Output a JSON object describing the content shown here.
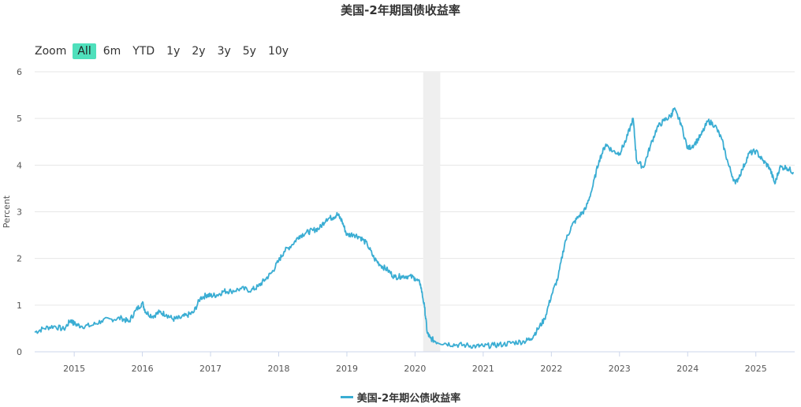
{
  "title": "美国-2年期国债收益率",
  "zoom": {
    "label": "Zoom",
    "buttons": [
      "All",
      "6m",
      "YTD",
      "1y",
      "2y",
      "3y",
      "5y",
      "10y"
    ],
    "active": "All"
  },
  "legend_label": "美国-2年期公债收益率",
  "colors": {
    "line": "#3aadd3",
    "band": "#efefef",
    "active_button": "#4fe0bc",
    "grid": "#e6e6e6"
  },
  "chart_data": {
    "type": "line",
    "title": "美国-2年期国债收益率",
    "xlabel": "",
    "ylabel": "Percent",
    "ylim": [
      0,
      6
    ],
    "yticks": [
      0,
      1,
      2,
      3,
      4,
      5,
      6
    ],
    "xticks": [
      "2015",
      "2016",
      "2017",
      "2018",
      "2019",
      "2020",
      "2021",
      "2022",
      "2023",
      "2024",
      "2025"
    ],
    "xlim": [
      2014.42,
      2025.57
    ],
    "grid": true,
    "legend": "bottom-center",
    "shaded_region": [
      2020.12,
      2020.37
    ],
    "series": [
      {
        "name": "美国-2年期公债收益率",
        "points": [
          [
            2014.42,
            0.42
          ],
          [
            2014.55,
            0.5
          ],
          [
            2014.7,
            0.55
          ],
          [
            2014.85,
            0.48
          ],
          [
            2014.95,
            0.68
          ],
          [
            2015.0,
            0.6
          ],
          [
            2015.1,
            0.55
          ],
          [
            2015.25,
            0.56
          ],
          [
            2015.4,
            0.66
          ],
          [
            2015.55,
            0.7
          ],
          [
            2015.7,
            0.72
          ],
          [
            2015.8,
            0.64
          ],
          [
            2015.9,
            0.88
          ],
          [
            2016.0,
            1.05
          ],
          [
            2016.05,
            0.85
          ],
          [
            2016.15,
            0.76
          ],
          [
            2016.25,
            0.85
          ],
          [
            2016.35,
            0.8
          ],
          [
            2016.45,
            0.7
          ],
          [
            2016.55,
            0.72
          ],
          [
            2016.65,
            0.78
          ],
          [
            2016.75,
            0.84
          ],
          [
            2016.85,
            1.15
          ],
          [
            2016.95,
            1.22
          ],
          [
            2017.0,
            1.2
          ],
          [
            2017.1,
            1.22
          ],
          [
            2017.2,
            1.3
          ],
          [
            2017.3,
            1.3
          ],
          [
            2017.45,
            1.35
          ],
          [
            2017.6,
            1.32
          ],
          [
            2017.7,
            1.4
          ],
          [
            2017.8,
            1.55
          ],
          [
            2017.9,
            1.7
          ],
          [
            2018.0,
            1.95
          ],
          [
            2018.08,
            2.15
          ],
          [
            2018.2,
            2.3
          ],
          [
            2018.3,
            2.48
          ],
          [
            2018.4,
            2.55
          ],
          [
            2018.5,
            2.6
          ],
          [
            2018.6,
            2.65
          ],
          [
            2018.7,
            2.85
          ],
          [
            2018.8,
            2.88
          ],
          [
            2018.86,
            2.95
          ],
          [
            2018.93,
            2.8
          ],
          [
            2019.0,
            2.5
          ],
          [
            2019.1,
            2.52
          ],
          [
            2019.2,
            2.45
          ],
          [
            2019.3,
            2.3
          ],
          [
            2019.4,
            2.0
          ],
          [
            2019.5,
            1.85
          ],
          [
            2019.6,
            1.75
          ],
          [
            2019.7,
            1.6
          ],
          [
            2019.8,
            1.62
          ],
          [
            2019.9,
            1.62
          ],
          [
            2020.0,
            1.58
          ],
          [
            2020.08,
            1.45
          ],
          [
            2020.14,
            0.95
          ],
          [
            2020.18,
            0.4
          ],
          [
            2020.22,
            0.3
          ],
          [
            2020.3,
            0.22
          ],
          [
            2020.45,
            0.18
          ],
          [
            2020.6,
            0.15
          ],
          [
            2020.75,
            0.14
          ],
          [
            2020.9,
            0.12
          ],
          [
            2021.0,
            0.12
          ],
          [
            2021.15,
            0.14
          ],
          [
            2021.3,
            0.16
          ],
          [
            2021.45,
            0.2
          ],
          [
            2021.6,
            0.22
          ],
          [
            2021.7,
            0.28
          ],
          [
            2021.8,
            0.48
          ],
          [
            2021.9,
            0.7
          ],
          [
            2022.0,
            1.2
          ],
          [
            2022.1,
            1.6
          ],
          [
            2022.2,
            2.35
          ],
          [
            2022.3,
            2.7
          ],
          [
            2022.4,
            2.9
          ],
          [
            2022.5,
            3.05
          ],
          [
            2022.6,
            3.5
          ],
          [
            2022.7,
            4.1
          ],
          [
            2022.8,
            4.45
          ],
          [
            2022.9,
            4.3
          ],
          [
            2023.0,
            4.25
          ],
          [
            2023.1,
            4.55
          ],
          [
            2023.2,
            5.0
          ],
          [
            2023.25,
            4.1
          ],
          [
            2023.35,
            3.95
          ],
          [
            2023.45,
            4.4
          ],
          [
            2023.55,
            4.8
          ],
          [
            2023.65,
            4.95
          ],
          [
            2023.75,
            5.05
          ],
          [
            2023.8,
            5.2
          ],
          [
            2023.9,
            4.9
          ],
          [
            2024.0,
            4.35
          ],
          [
            2024.1,
            4.45
          ],
          [
            2024.2,
            4.65
          ],
          [
            2024.3,
            4.95
          ],
          [
            2024.4,
            4.85
          ],
          [
            2024.5,
            4.55
          ],
          [
            2024.6,
            4.0
          ],
          [
            2024.7,
            3.6
          ],
          [
            2024.8,
            3.9
          ],
          [
            2024.9,
            4.25
          ],
          [
            2025.0,
            4.3
          ],
          [
            2025.1,
            4.1
          ],
          [
            2025.2,
            3.95
          ],
          [
            2025.28,
            3.6
          ],
          [
            2025.35,
            3.95
          ],
          [
            2025.45,
            3.95
          ],
          [
            2025.55,
            3.85
          ]
        ]
      }
    ]
  }
}
